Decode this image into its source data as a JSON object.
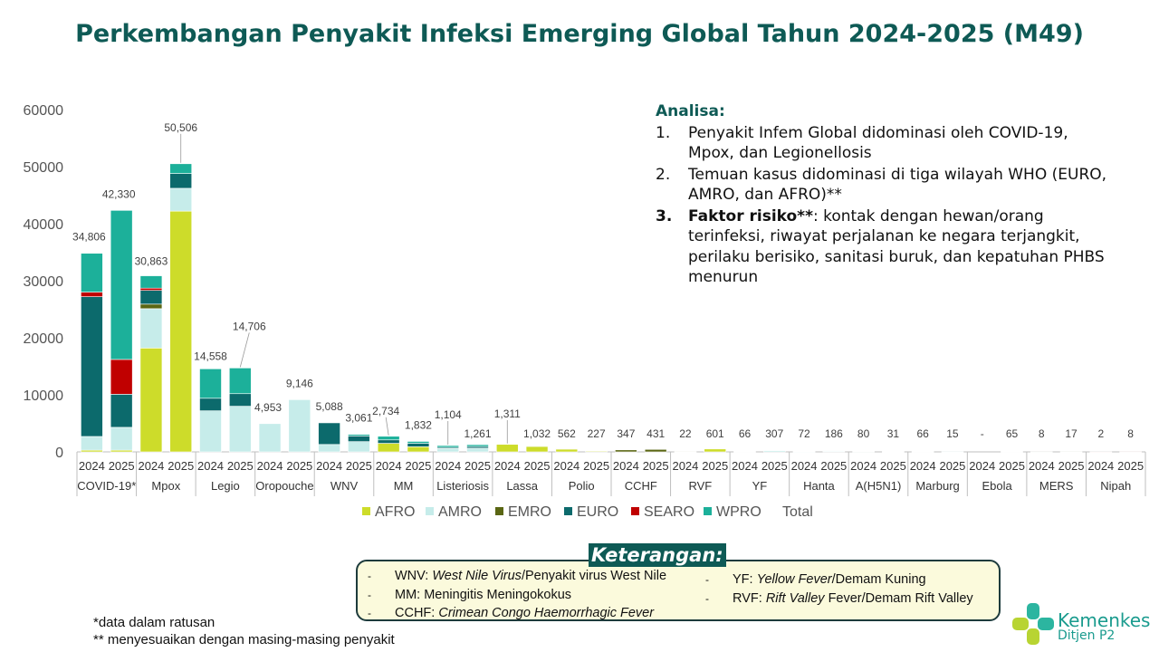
{
  "title": "Perkembangan Penyakit Infeksi Emerging Global Tahun 2024-2025 (M49)",
  "chart_data": {
    "type": "bar",
    "stacked": true,
    "ylim": [
      0,
      60000
    ],
    "yticks": [
      "0",
      "10000",
      "20000",
      "30000",
      "40000",
      "50000",
      "60000"
    ],
    "year_labels": [
      "2024",
      "2025"
    ],
    "diseases": [
      "COVID-19*",
      "Mpox",
      "Legio",
      "Oropouche",
      "WNV",
      "MM",
      "Listeriosis",
      "Lassa",
      "Polio",
      "CCHF",
      "RVF",
      "YF",
      "Hanta",
      "A(H5N1)",
      "Marburg",
      "Ebola",
      "MERS",
      "Nipah"
    ],
    "totals": [
      "34,806",
      "42,330",
      "30,863",
      "50,506",
      "14,558",
      "14,706",
      "4,953",
      "9,146",
      "5,088",
      "3,061",
      "2,734",
      "1,832",
      "1,104",
      "1,261",
      "1,311",
      "1,032",
      "562",
      "227",
      "347",
      "431",
      "22",
      "601",
      "66",
      "307",
      "72",
      "186",
      "80",
      "31",
      "66",
      "15",
      "-",
      "65",
      "8",
      "17",
      "2",
      "8"
    ],
    "series_names": [
      "AFRO",
      "AMRO",
      "EMRO",
      "EURO",
      "SEARO",
      "WPRO"
    ],
    "series_colors": [
      "#cddc2a",
      "#c6ecea",
      "#5a6613",
      "#0c6a6c",
      "#c00000",
      "#1cb09a"
    ],
    "total_label": "Total",
    "series": [
      {
        "name": "AFRO",
        "values": [
          300,
          300,
          18200,
          42200,
          0,
          0,
          0,
          0,
          0,
          0,
          1500,
          900,
          0,
          0,
          1311,
          1000,
          500,
          200,
          0,
          0,
          0,
          600,
          0,
          0,
          0,
          0,
          0,
          0,
          60,
          0,
          0,
          0,
          0,
          0,
          0,
          0
        ]
      },
      {
        "name": "AMRO",
        "values": [
          2400,
          4000,
          6900,
          4000,
          7200,
          8000,
          4953,
          9146,
          1300,
          1800,
          0,
          0,
          600,
          650,
          0,
          0,
          0,
          0,
          0,
          0,
          0,
          0,
          66,
          300,
          70,
          180,
          80,
          31,
          0,
          0,
          0,
          0,
          0,
          0,
          0,
          0
        ]
      },
      {
        "name": "EMRO",
        "values": [
          0,
          0,
          800,
          0,
          0,
          0,
          0,
          0,
          0,
          0,
          0,
          0,
          0,
          0,
          0,
          0,
          62,
          27,
          347,
          431,
          22,
          0,
          0,
          0,
          0,
          0,
          0,
          0,
          0,
          0,
          0,
          0,
          8,
          17,
          0,
          0
        ]
      },
      {
        "name": "EURO",
        "values": [
          24500,
          5800,
          2400,
          2600,
          2200,
          2200,
          0,
          0,
          3788,
          1000,
          600,
          600,
          200,
          300,
          0,
          0,
          0,
          0,
          0,
          0,
          0,
          0,
          0,
          0,
          0,
          0,
          0,
          0,
          0,
          0,
          0,
          0,
          0,
          0,
          0,
          0
        ]
      },
      {
        "name": "SEARO",
        "values": [
          800,
          6100,
          400,
          0,
          0,
          0,
          0,
          0,
          0,
          0,
          0,
          0,
          0,
          0,
          0,
          0,
          0,
          0,
          0,
          0,
          0,
          0,
          0,
          0,
          0,
          0,
          0,
          0,
          0,
          0,
          0,
          0,
          0,
          0,
          2,
          8
        ]
      },
      {
        "name": "WPRO",
        "values": [
          6806,
          26130,
          2163,
          1706,
          5158,
          4506,
          0,
          0,
          0,
          261,
          634,
          332,
          304,
          311,
          0,
          32,
          0,
          0,
          0,
          0,
          0,
          1,
          0,
          7,
          2,
          6,
          0,
          0,
          6,
          15,
          0,
          65,
          0,
          0,
          0,
          0
        ]
      }
    ]
  },
  "analysis": {
    "heading": "Analisa:",
    "items": [
      {
        "num": "1.",
        "bold": "",
        "text": "Penyakit Infem Global didominasi oleh COVID-19, Mpox, dan Legionellosis"
      },
      {
        "num": "2.",
        "bold": "",
        "text": "Temuan kasus didominasi di tiga wilayah WHO (EURO, AMRO, dan AFRO)**"
      },
      {
        "num": "3.",
        "bold": "Faktor risiko**",
        "text": ": kontak dengan hewan/orang terinfeksi, riwayat perjalanan ke negara terjangkit, perilaku berisiko, sanitasi buruk, dan kepatuhan PHBS menurun"
      }
    ]
  },
  "keterangan": {
    "title": "Keterangan:",
    "left": [
      {
        "abbr": "WNV:",
        "italic": "West Nile Virus",
        "rest": "/Penyakit virus West Nile"
      },
      {
        "abbr": "MM:",
        "italic": "",
        "rest": "Meningitis Meningokokus"
      },
      {
        "abbr": "CCHF:",
        "italic": "Crimean Congo Haemorrhagic Fever",
        "rest": ""
      }
    ],
    "right": [
      {
        "abbr": "YF:",
        "italic": "Yellow Fever",
        "rest": "/Demam Kuning"
      },
      {
        "abbr": "RVF:",
        "italic": "Rift Valley",
        "rest": " Fever/Demam Rift Valley"
      }
    ],
    "dash": "-"
  },
  "footnotes": [
    "*data dalam ratusan",
    "** menyesuaikan dengan masing-masing penyakit"
  ],
  "logo": {
    "name": "Kemenkes",
    "sub": "Ditjen P2"
  }
}
